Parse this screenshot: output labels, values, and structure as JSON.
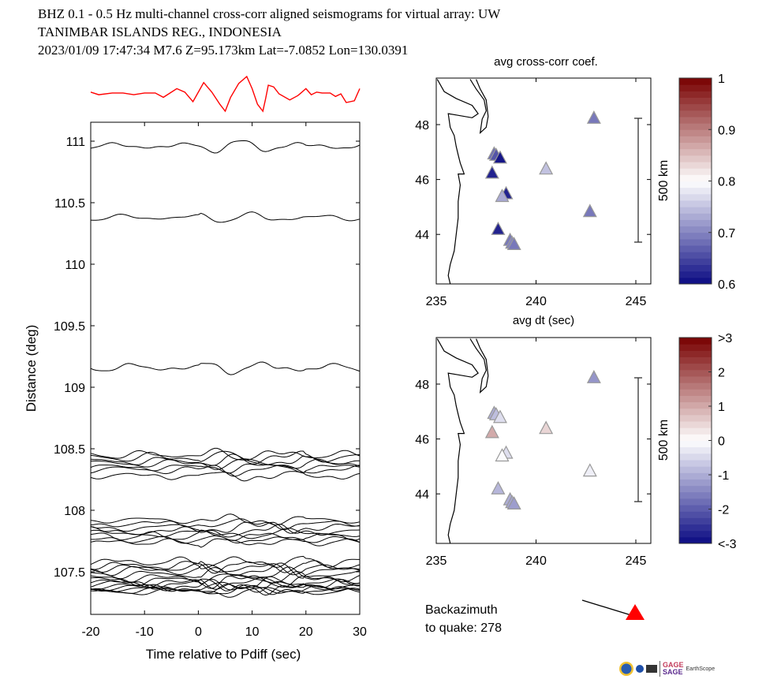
{
  "header": {
    "line1": "BHZ  0.1 - 0.5 Hz  multi-channel cross-corr aligned seismograms for virtual array: UW",
    "line2": "TANIMBAR ISLANDS REG., INDONESIA",
    "line3": "2023/01/09  17:47:34  M7.6  Z=95.173km Lat=-7.0852 Lon=130.0391"
  },
  "backazimuth": {
    "line1": "Backazimuth",
    "line2": "to quake:  278",
    "value": 278,
    "arrow_color": "#ff0000"
  },
  "logos": {
    "gage": "GAGE",
    "sage": "SAGE",
    "earthscope": "EarthScope"
  },
  "chart_data": [
    {
      "type": "line",
      "name": "seismograms",
      "title": "",
      "xlabel": "Time relative to Pdiff (sec)",
      "ylabel": "Distance (deg)",
      "xlim": [
        -20,
        30
      ],
      "ylim": [
        107.15,
        111.15
      ],
      "xticks": [
        "-20",
        "-10",
        "0",
        "10",
        "20",
        "30"
      ],
      "xtick_values": [
        -20,
        -10,
        0,
        10,
        20,
        30
      ],
      "yticks": [
        "107.5",
        "108",
        "108.5",
        "109",
        "109.5",
        "110",
        "110.5",
        "111"
      ],
      "ytick_values": [
        107.5,
        108,
        108.5,
        109,
        109.5,
        110,
        110.5,
        111
      ],
      "trace_color": "#000000",
      "stack_color": "#ff0000",
      "stack_trace": {
        "name": "stacked beam",
        "t": [
          -20,
          -18.5,
          -16,
          -14,
          -12,
          -10,
          -8,
          -6.5,
          -4,
          -2.5,
          -1,
          1,
          2.5,
          4,
          5,
          6,
          7.5,
          9,
          10,
          11,
          12,
          12.5,
          13,
          14,
          15,
          17,
          18.5,
          20,
          21,
          22,
          23,
          24.5,
          25.5,
          26.5,
          27.5,
          29,
          30
        ],
        "a": [
          0.1,
          -0.05,
          0.05,
          0.05,
          -0.05,
          0.05,
          0.05,
          -0.2,
          0.3,
          0.1,
          -0.45,
          0.65,
          0.1,
          -0.6,
          -1.0,
          -0.2,
          0.6,
          1.0,
          0.3,
          -0.6,
          -1.0,
          -0.3,
          0.5,
          0.4,
          0.0,
          -0.35,
          -0.1,
          0.3,
          -0.05,
          0.1,
          0.05,
          0.05,
          -0.15,
          0.0,
          -0.5,
          -0.4,
          0.3
        ]
      },
      "series": [
        {
          "dist": 110.96,
          "amp": 0.06,
          "seed": 1
        },
        {
          "dist": 110.38,
          "amp": 0.05,
          "seed": 2
        },
        {
          "dist": 109.16,
          "amp": 0.06,
          "seed": 3
        },
        {
          "dist": 108.45,
          "amp": 0.06,
          "seed": 4
        },
        {
          "dist": 108.43,
          "amp": 0.07,
          "seed": 5
        },
        {
          "dist": 108.4,
          "amp": 0.06,
          "seed": 6
        },
        {
          "dist": 108.38,
          "amp": 0.06,
          "seed": 7
        },
        {
          "dist": 108.35,
          "amp": 0.05,
          "seed": 8
        },
        {
          "dist": 108.33,
          "amp": 0.06,
          "seed": 9
        },
        {
          "dist": 108.28,
          "amp": 0.05,
          "seed": 10
        },
        {
          "dist": 107.92,
          "amp": 0.05,
          "seed": 11
        },
        {
          "dist": 107.89,
          "amp": 0.05,
          "seed": 12
        },
        {
          "dist": 107.86,
          "amp": 0.06,
          "seed": 13
        },
        {
          "dist": 107.83,
          "amp": 0.06,
          "seed": 14
        },
        {
          "dist": 107.81,
          "amp": 0.05,
          "seed": 15
        },
        {
          "dist": 107.79,
          "amp": 0.06,
          "seed": 16
        },
        {
          "dist": 107.76,
          "amp": 0.05,
          "seed": 17
        },
        {
          "dist": 107.74,
          "amp": 0.05,
          "seed": 18
        },
        {
          "dist": 107.58,
          "amp": 0.07,
          "seed": 19
        },
        {
          "dist": 107.55,
          "amp": 0.07,
          "seed": 20
        },
        {
          "dist": 107.53,
          "amp": 0.06,
          "seed": 21
        },
        {
          "dist": 107.51,
          "amp": 0.07,
          "seed": 22
        },
        {
          "dist": 107.48,
          "amp": 0.06,
          "seed": 23
        },
        {
          "dist": 107.45,
          "amp": 0.06,
          "seed": 24
        },
        {
          "dist": 107.43,
          "amp": 0.07,
          "seed": 25
        },
        {
          "dist": 107.41,
          "amp": 0.06,
          "seed": 26
        },
        {
          "dist": 107.4,
          "amp": 0.07,
          "seed": 27
        },
        {
          "dist": 107.38,
          "amp": 0.06,
          "seed": 28
        },
        {
          "dist": 107.37,
          "amp": 0.06,
          "seed": 29
        },
        {
          "dist": 107.36,
          "amp": 0.05,
          "seed": 30
        },
        {
          "dist": 107.35,
          "amp": 0.05,
          "seed": 31
        },
        {
          "dist": 107.34,
          "amp": 0.05,
          "seed": 32
        }
      ]
    },
    {
      "type": "scatter",
      "name": "cross-corr-map",
      "title": "avg cross-corr coef.",
      "xlim": [
        235,
        245.8
      ],
      "ylim": [
        42.2,
        49.65
      ],
      "xticks": [
        "235",
        "240",
        "245"
      ],
      "xtick_values": [
        235,
        240,
        245
      ],
      "yticks": [
        "44",
        "46",
        "48"
      ],
      "ytick_values": [
        44,
        46,
        48
      ],
      "scale_bar_label": "500 km",
      "colorbar": {
        "min": 0.6,
        "max": 1.0,
        "ticks": [
          "0.6",
          "0.7",
          "0.8",
          "0.9",
          "1"
        ],
        "tick_values": [
          0.6,
          0.7,
          0.8,
          0.9,
          1.0
        ],
        "center": 0.8
      },
      "points": [
        {
          "lon": 242.9,
          "lat": 48.25,
          "value": 0.69
        },
        {
          "lon": 237.9,
          "lat": 46.95,
          "value": 0.68
        },
        {
          "lon": 238.0,
          "lat": 46.9,
          "value": 0.66
        },
        {
          "lon": 238.2,
          "lat": 46.8,
          "value": 0.61
        },
        {
          "lon": 240.5,
          "lat": 46.4,
          "value": 0.75
        },
        {
          "lon": 237.8,
          "lat": 46.25,
          "value": 0.62
        },
        {
          "lon": 238.5,
          "lat": 45.5,
          "value": 0.62
        },
        {
          "lon": 238.3,
          "lat": 45.4,
          "value": 0.73
        },
        {
          "lon": 242.7,
          "lat": 44.85,
          "value": 0.69
        },
        {
          "lon": 238.1,
          "lat": 44.2,
          "value": 0.62
        },
        {
          "lon": 238.7,
          "lat": 43.8,
          "value": 0.69
        },
        {
          "lon": 238.8,
          "lat": 43.7,
          "value": 0.7
        },
        {
          "lon": 238.9,
          "lat": 43.65,
          "value": 0.69
        }
      ]
    },
    {
      "type": "scatter",
      "name": "dt-map",
      "title": "avg dt (sec)",
      "xlim": [
        235,
        245.8
      ],
      "ylim": [
        42.2,
        49.65
      ],
      "xticks": [
        "235",
        "240",
        "245"
      ],
      "xtick_values": [
        235,
        240,
        245
      ],
      "yticks": [
        "44",
        "46",
        "48"
      ],
      "ytick_values": [
        44,
        46,
        48
      ],
      "scale_bar_label": "500 km",
      "colorbar": {
        "min": -3,
        "max": 3,
        "ticks": [
          "<-3",
          "-2",
          "-1",
          "0",
          "1",
          "2",
          ">3"
        ],
        "tick_values": [
          -3,
          -2,
          -1,
          0,
          1,
          2,
          3
        ],
        "center": 0
      },
      "points": [
        {
          "lon": 242.9,
          "lat": 48.25,
          "value": -1.3
        },
        {
          "lon": 237.9,
          "lat": 46.95,
          "value": -1.0
        },
        {
          "lon": 238.0,
          "lat": 46.9,
          "value": -0.8
        },
        {
          "lon": 238.2,
          "lat": 46.8,
          "value": -0.4
        },
        {
          "lon": 240.5,
          "lat": 46.4,
          "value": 0.5
        },
        {
          "lon": 237.8,
          "lat": 46.25,
          "value": 1.0
        },
        {
          "lon": 238.5,
          "lat": 45.5,
          "value": -0.4
        },
        {
          "lon": 238.3,
          "lat": 45.4,
          "value": -0.05
        },
        {
          "lon": 242.7,
          "lat": 44.85,
          "value": -0.2
        },
        {
          "lon": 238.1,
          "lat": 44.2,
          "value": -0.9
        },
        {
          "lon": 238.7,
          "lat": 43.8,
          "value": -1.0
        },
        {
          "lon": 238.8,
          "lat": 43.7,
          "value": -1.1
        },
        {
          "lon": 238.9,
          "lat": 43.65,
          "value": -1.2
        }
      ]
    }
  ]
}
